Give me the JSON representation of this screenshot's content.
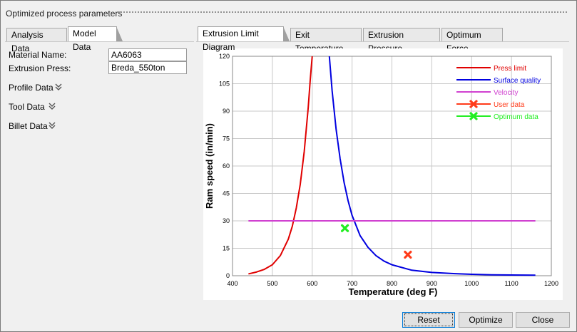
{
  "window": {
    "title": "Optimized process parameters"
  },
  "left_tabs": [
    {
      "label": "Analysis Data",
      "active": false
    },
    {
      "label": "Model Data",
      "active": true
    }
  ],
  "fields": {
    "material_name_label": "Material Name:",
    "material_name_value": "AA6063",
    "extrusion_press_label": "Extrusion Press:",
    "extrusion_press_value": "Breda_550ton"
  },
  "sections": [
    {
      "label": "Profile Data",
      "icon": "double-chevron-down-icon"
    },
    {
      "label": "Tool Data",
      "icon": "double-chevron-down-icon"
    },
    {
      "label": "Billet Data",
      "icon": "double-chevron-down-icon"
    }
  ],
  "right_tabs": [
    {
      "label": "Extrusion Limit Diagram",
      "active": true
    },
    {
      "label": "Exit Temperature",
      "active": false
    },
    {
      "label": "Extrusion Pressure",
      "active": false
    },
    {
      "label": "Optimum Force",
      "active": false
    }
  ],
  "buttons": {
    "reset": "Reset",
    "optimize": "Optimize",
    "close": "Close"
  },
  "chart_data": {
    "type": "line",
    "xlabel": "Temperature (deg F)",
    "ylabel": "Ram speed (in/min)",
    "xlim": [
      400,
      1200
    ],
    "ylim": [
      0,
      120
    ],
    "x_ticks": [
      400,
      500,
      600,
      700,
      800,
      900,
      1000,
      1100,
      1200
    ],
    "y_ticks": [
      0,
      15,
      30,
      45,
      60,
      75,
      90,
      105,
      120
    ],
    "grid": true,
    "legend_position": "top-right",
    "series": [
      {
        "name": "Press limit",
        "color": "#e00000",
        "kind": "line",
        "x": [
          440,
          460,
          480,
          500,
          520,
          540,
          550,
          560,
          570,
          580,
          590,
          595,
          600
        ],
        "y": [
          1,
          2,
          3.5,
          6,
          11,
          20,
          27,
          37,
          50,
          68,
          92,
          107,
          120
        ]
      },
      {
        "name": "Surface quality",
        "color": "#0000e0",
        "kind": "line",
        "x": [
          643,
          650,
          660,
          670,
          680,
          690,
          700,
          720,
          740,
          760,
          780,
          800,
          850,
          900,
          950,
          1000,
          1050,
          1100,
          1160
        ],
        "y": [
          120,
          101,
          80,
          64,
          51,
          41,
          33,
          22,
          15.5,
          11,
          8,
          6,
          3,
          1.8,
          1.2,
          0.8,
          0.5,
          0.4,
          0.3
        ]
      },
      {
        "name": "Velocity",
        "color": "#d040d0",
        "kind": "line",
        "x": [
          440,
          1160
        ],
        "y": [
          30,
          30
        ]
      },
      {
        "name": "User data",
        "color": "#ff3b1a",
        "kind": "marker",
        "x": [
          840
        ],
        "y": [
          11.5
        ]
      },
      {
        "name": "Optimum data",
        "color": "#22ee22",
        "kind": "marker",
        "x": [
          682
        ],
        "y": [
          26
        ]
      }
    ]
  }
}
